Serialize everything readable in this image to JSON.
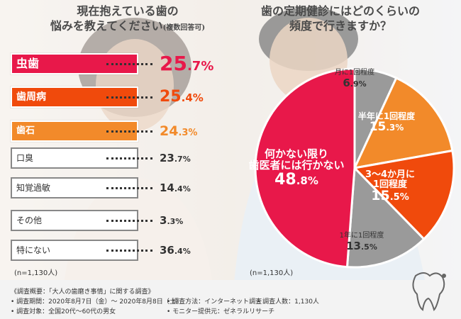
{
  "title_left": {
    "line1": "現在抱えている歯の",
    "line2": "悩みを教えてください",
    "note": "(複数回答可)"
  },
  "title_right": {
    "line1": "歯の定期健診にはどのくらいの",
    "line2": "頻度で行きますか？"
  },
  "colors": {
    "red": "#e8184a",
    "orange_red": "#f04a0c",
    "orange": "#f28a2a",
    "gray": "#9a9a9a",
    "white": "#ffffff"
  },
  "chart_data": [
    {
      "type": "bar",
      "title": "現在抱えている歯の悩みを教えてください(複数回答可)",
      "categories": [
        "虫歯",
        "歯周病",
        "歯石",
        "口臭",
        "知覚過敏",
        "その他",
        "特にない"
      ],
      "values": [
        25.7,
        25.4,
        24.3,
        23.7,
        14.4,
        3.3,
        36.4
      ],
      "value_labels": [
        {
          "int": "25",
          "dec": ".7%"
        },
        {
          "int": "25",
          "dec": ".4%"
        },
        {
          "int": "24",
          "dec": ".3%"
        },
        {
          "int": "23",
          "dec": ".7%"
        },
        {
          "int": "14",
          "dec": ".4%"
        },
        {
          "int": "3",
          "dec": ".3%"
        },
        {
          "int": "36",
          "dec": ".4%"
        }
      ],
      "unit": "%",
      "n": "(n=1,130人)"
    },
    {
      "type": "pie",
      "title": "歯の定期健診にはどのくらいの頻度で行きますか？",
      "slices": [
        {
          "label": "月に1回程度",
          "value": 6.9,
          "int": "6",
          "dec": ".9%",
          "color": "#9a9a9a"
        },
        {
          "label": "半年に1回程度",
          "value": 15.3,
          "int": "15",
          "dec": ".3%",
          "color": "#f28a2a"
        },
        {
          "label": "3〜4か月に1回程度",
          "value": 15.5,
          "int": "15",
          "dec": ".5%",
          "color": "#f04a0c"
        },
        {
          "label": "1年に1回程度",
          "value": 13.5,
          "int": "13",
          "dec": ".5%",
          "color": "#9a9a9a"
        },
        {
          "label": "何かない限り歯医者には行かない",
          "value": 48.8,
          "int": "48",
          "dec": ".8%",
          "color": "#e8184a"
        }
      ],
      "label_lines": {
        "s0": [
          "月に1回程度"
        ],
        "s1": [
          "半年に1回程度"
        ],
        "s2": [
          "3〜4か月に",
          "1回程度"
        ],
        "s3": [
          "1年に1回程度"
        ],
        "s4": [
          "何かない限り",
          "歯医者には行かない"
        ]
      },
      "n": "(n=1,130人)"
    }
  ],
  "footer": {
    "line1": "《調査概要：「大人の歯磨き事情」に関する調査》",
    "line2a": "• 調査期間：2020年8月7日（金）〜 2020年8月8日（土）",
    "line2b": "• 調査方法：インターネット調査",
    "line2c": "• 調査人数：1,130人",
    "line3a": "• 調査対象：全国20代〜60代の男女",
    "line3b": "• モニター提供元：ゼネラルリサーチ"
  }
}
